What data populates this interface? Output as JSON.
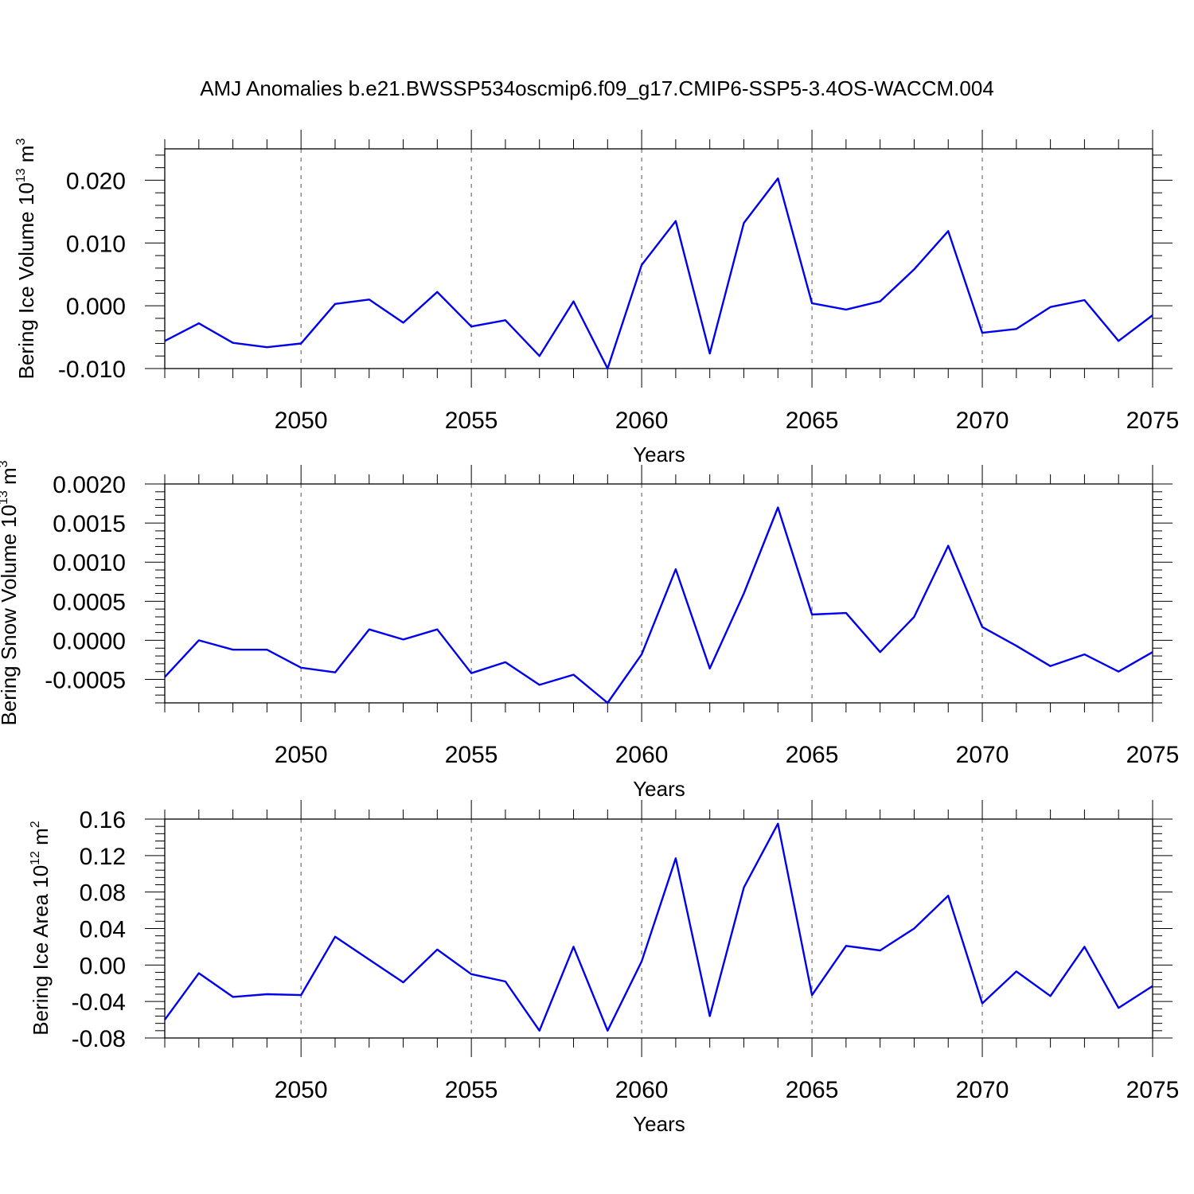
{
  "title": "AMJ Anomalies b.e21.BWSSP534oscmip6.f09_g17.CMIP6-SSP5-3.4OS-WACCM.004",
  "line_color": "#0000ee",
  "chart_data": [
    {
      "type": "line",
      "title": "",
      "xlabel": "Years",
      "ylabel": {
        "text": "Bering Ice Volume 10",
        "sup": "13",
        "unit": " m",
        "unit_sup": "3"
      },
      "xlim": [
        2046,
        2075
      ],
      "ylim": [
        -0.01,
        0.025
      ],
      "yticks": [
        -0.01,
        0.0,
        0.01,
        0.02
      ],
      "ytick_labels": [
        "-0.010",
        "0.000",
        "0.010",
        "0.020"
      ],
      "xticks": [
        2050,
        2055,
        2060,
        2065,
        2070,
        2075
      ],
      "xtick_labels": [
        "2050",
        "2055",
        "2060",
        "2065",
        "2070",
        "2075"
      ],
      "grid": "vertical dashed at major x ticks",
      "x": [
        2046,
        2047,
        2048,
        2049,
        2050,
        2051,
        2052,
        2053,
        2054,
        2055,
        2056,
        2057,
        2058,
        2059,
        2060,
        2061,
        2062,
        2063,
        2064,
        2065,
        2066,
        2067,
        2068,
        2069,
        2070,
        2071,
        2072,
        2073,
        2074,
        2075
      ],
      "values": [
        -0.0056,
        -0.0028,
        -0.0059,
        -0.0066,
        -0.006,
        0.0003,
        0.001,
        -0.0027,
        0.0022,
        -0.0033,
        -0.0023,
        -0.008,
        0.0007,
        -0.01,
        0.0065,
        0.0135,
        -0.0076,
        0.0132,
        0.0203,
        0.0004,
        -0.0006,
        0.0007,
        0.0058,
        0.0119,
        -0.0043,
        -0.0037,
        -0.0002,
        0.0009,
        -0.0056,
        -0.0015
      ]
    },
    {
      "type": "line",
      "title": "",
      "xlabel": "Years",
      "ylabel": {
        "text": "Bering Snow Volume 10",
        "sup": "13",
        "unit": " m",
        "unit_sup": "3"
      },
      "xlim": [
        2046,
        2075
      ],
      "ylim": [
        -0.0008,
        0.002
      ],
      "yticks": [
        -0.0005,
        0.0,
        0.0005,
        0.001,
        0.0015,
        0.002
      ],
      "ytick_labels": [
        "-0.0005",
        "0.0000",
        "0.0005",
        "0.0010",
        "0.0015",
        "0.0020"
      ],
      "xticks": [
        2050,
        2055,
        2060,
        2065,
        2070,
        2075
      ],
      "xtick_labels": [
        "2050",
        "2055",
        "2060",
        "2065",
        "2070",
        "2075"
      ],
      "grid": "vertical dashed at major x ticks",
      "x": [
        2046,
        2047,
        2048,
        2049,
        2050,
        2051,
        2052,
        2053,
        2054,
        2055,
        2056,
        2057,
        2058,
        2059,
        2060,
        2061,
        2062,
        2063,
        2064,
        2065,
        2066,
        2067,
        2068,
        2069,
        2070,
        2071,
        2072,
        2073,
        2074,
        2075
      ],
      "values": [
        -0.00047,
        0.0,
        -0.00012,
        -0.00012,
        -0.00035,
        -0.00041,
        0.00014,
        1e-05,
        0.00014,
        -0.00042,
        -0.00028,
        -0.00057,
        -0.00044,
        -0.0008,
        -0.00018,
        0.00091,
        -0.00036,
        0.0006,
        0.0017,
        0.00033,
        0.00035,
        -0.00015,
        0.0003,
        0.00121,
        0.00017,
        -7e-05,
        -0.00033,
        -0.00018,
        -0.0004,
        -0.00015
      ]
    },
    {
      "type": "line",
      "title": "",
      "xlabel": "Years",
      "ylabel": {
        "text": "Bering Ice Area 10",
        "sup": "12",
        "unit": " m",
        "unit_sup": "2"
      },
      "xlim": [
        2046,
        2075
      ],
      "ylim": [
        -0.08,
        0.16
      ],
      "yticks": [
        -0.08,
        -0.04,
        0.0,
        0.04,
        0.08,
        0.12,
        0.16
      ],
      "ytick_labels": [
        "-0.08",
        "-0.04",
        "0.00",
        "0.04",
        "0.08",
        "0.12",
        "0.16"
      ],
      "xticks": [
        2050,
        2055,
        2060,
        2065,
        2070,
        2075
      ],
      "xtick_labels": [
        "2050",
        "2055",
        "2060",
        "2065",
        "2070",
        "2075"
      ],
      "grid": "vertical dashed at major x ticks",
      "x": [
        2046,
        2047,
        2048,
        2049,
        2050,
        2051,
        2052,
        2053,
        2054,
        2055,
        2056,
        2057,
        2058,
        2059,
        2060,
        2061,
        2062,
        2063,
        2064,
        2065,
        2066,
        2067,
        2068,
        2069,
        2070,
        2071,
        2072,
        2073,
        2074,
        2075
      ],
      "values": [
        -0.06,
        -0.009,
        -0.035,
        -0.032,
        -0.033,
        0.031,
        0.006,
        -0.019,
        0.017,
        -0.01,
        -0.018,
        -0.072,
        0.02,
        -0.072,
        0.004,
        0.117,
        -0.056,
        0.085,
        0.155,
        -0.033,
        0.021,
        0.016,
        0.04,
        0.076,
        -0.042,
        -0.007,
        -0.034,
        0.02,
        -0.047,
        -0.023
      ]
    }
  ]
}
